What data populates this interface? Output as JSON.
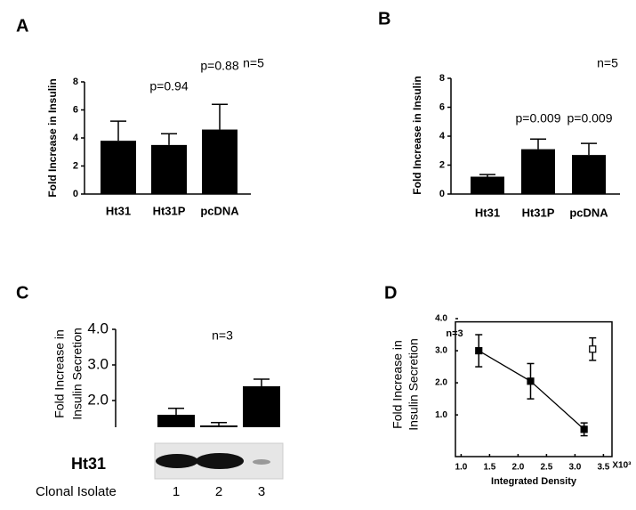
{
  "chart_data": [
    {
      "type": "bar",
      "label": "A",
      "ylabel": [
        "Fold Increase in Insulin"
      ],
      "categories": [
        "Ht31",
        "Ht31P",
        "pcDNA"
      ],
      "values": [
        3.8,
        3.5,
        4.6
      ],
      "errors": [
        1.4,
        0.8,
        1.8
      ],
      "color": "#000000",
      "ylim": [
        0,
        8
      ],
      "yticks": [
        0,
        2,
        4,
        6,
        8
      ],
      "annotations": [
        "n=5",
        "p=0.94",
        "p=0.88"
      ]
    },
    {
      "type": "bar",
      "label": "B",
      "ylabel": [
        "Fold Increase in Insulin"
      ],
      "categories": [
        "Ht31",
        "Ht31P",
        "pcDNA"
      ],
      "values": [
        1.2,
        3.1,
        2.7
      ],
      "errors": [
        0.15,
        0.7,
        0.8
      ],
      "color": "#000000",
      "ylim": [
        0,
        8
      ],
      "yticks": [
        0,
        2,
        4,
        6,
        8
      ],
      "annotations": [
        "n=5",
        "p=0.009",
        "p=0.009"
      ]
    },
    {
      "type": "bar",
      "label": "C",
      "ylabel": [
        "Fold Increase in",
        "Insulin Secretion"
      ],
      "xlabel": "Clonal Isolate",
      "blot_label": "Ht31",
      "categories": [
        "1",
        "2",
        "3"
      ],
      "values": [
        1.6,
        1.3,
        2.4
      ],
      "errors": [
        0.18,
        0.08,
        0.2
      ],
      "color": "#000000",
      "ylim": [
        1.25,
        4
      ],
      "yticks": [
        {
          "value": 2,
          "label": "2.0"
        },
        {
          "value": 3,
          "label": "3.0"
        },
        {
          "value": 4,
          "label": "4.0"
        }
      ],
      "annotations": [
        "n=3"
      ]
    },
    {
      "type": "scatter",
      "label": "D",
      "ylabel": [
        "Fold Increase in",
        "Insulin Secretion"
      ],
      "xlabel": "Integrated Density",
      "x_multiplier": "X10³",
      "xlim": [
        0.9,
        3.65
      ],
      "ylim": [
        -0.3,
        4
      ],
      "xticks": [
        {
          "value": 1,
          "label": "1.0"
        },
        {
          "value": 1.5,
          "label": "1.5"
        },
        {
          "value": 2,
          "label": "2.0"
        },
        {
          "value": 2.5,
          "label": "2.5"
        },
        {
          "value": 3,
          "label": "3.0"
        },
        {
          "value": 3.5,
          "label": "3.5"
        }
      ],
      "yticks": [
        {
          "value": 1,
          "label": "1.0"
        },
        {
          "value": 2,
          "label": "2.0"
        },
        {
          "value": 3,
          "label": "3.0"
        },
        {
          "value": 4,
          "label": "4.0"
        }
      ],
      "annotations": [
        "n=3"
      ],
      "series": [
        {
          "color": "#000000",
          "marker": "filled-line",
          "x": [
            1.31,
            2.22,
            3.16
          ],
          "values": [
            3.0,
            2.05,
            0.55
          ],
          "errors": [
            0.5,
            0.55,
            0.2
          ]
        },
        {
          "color": "#000000",
          "marker": "open",
          "x": [
            3.31
          ],
          "values": [
            3.05
          ],
          "errors": [
            0.35
          ]
        }
      ]
    }
  ]
}
